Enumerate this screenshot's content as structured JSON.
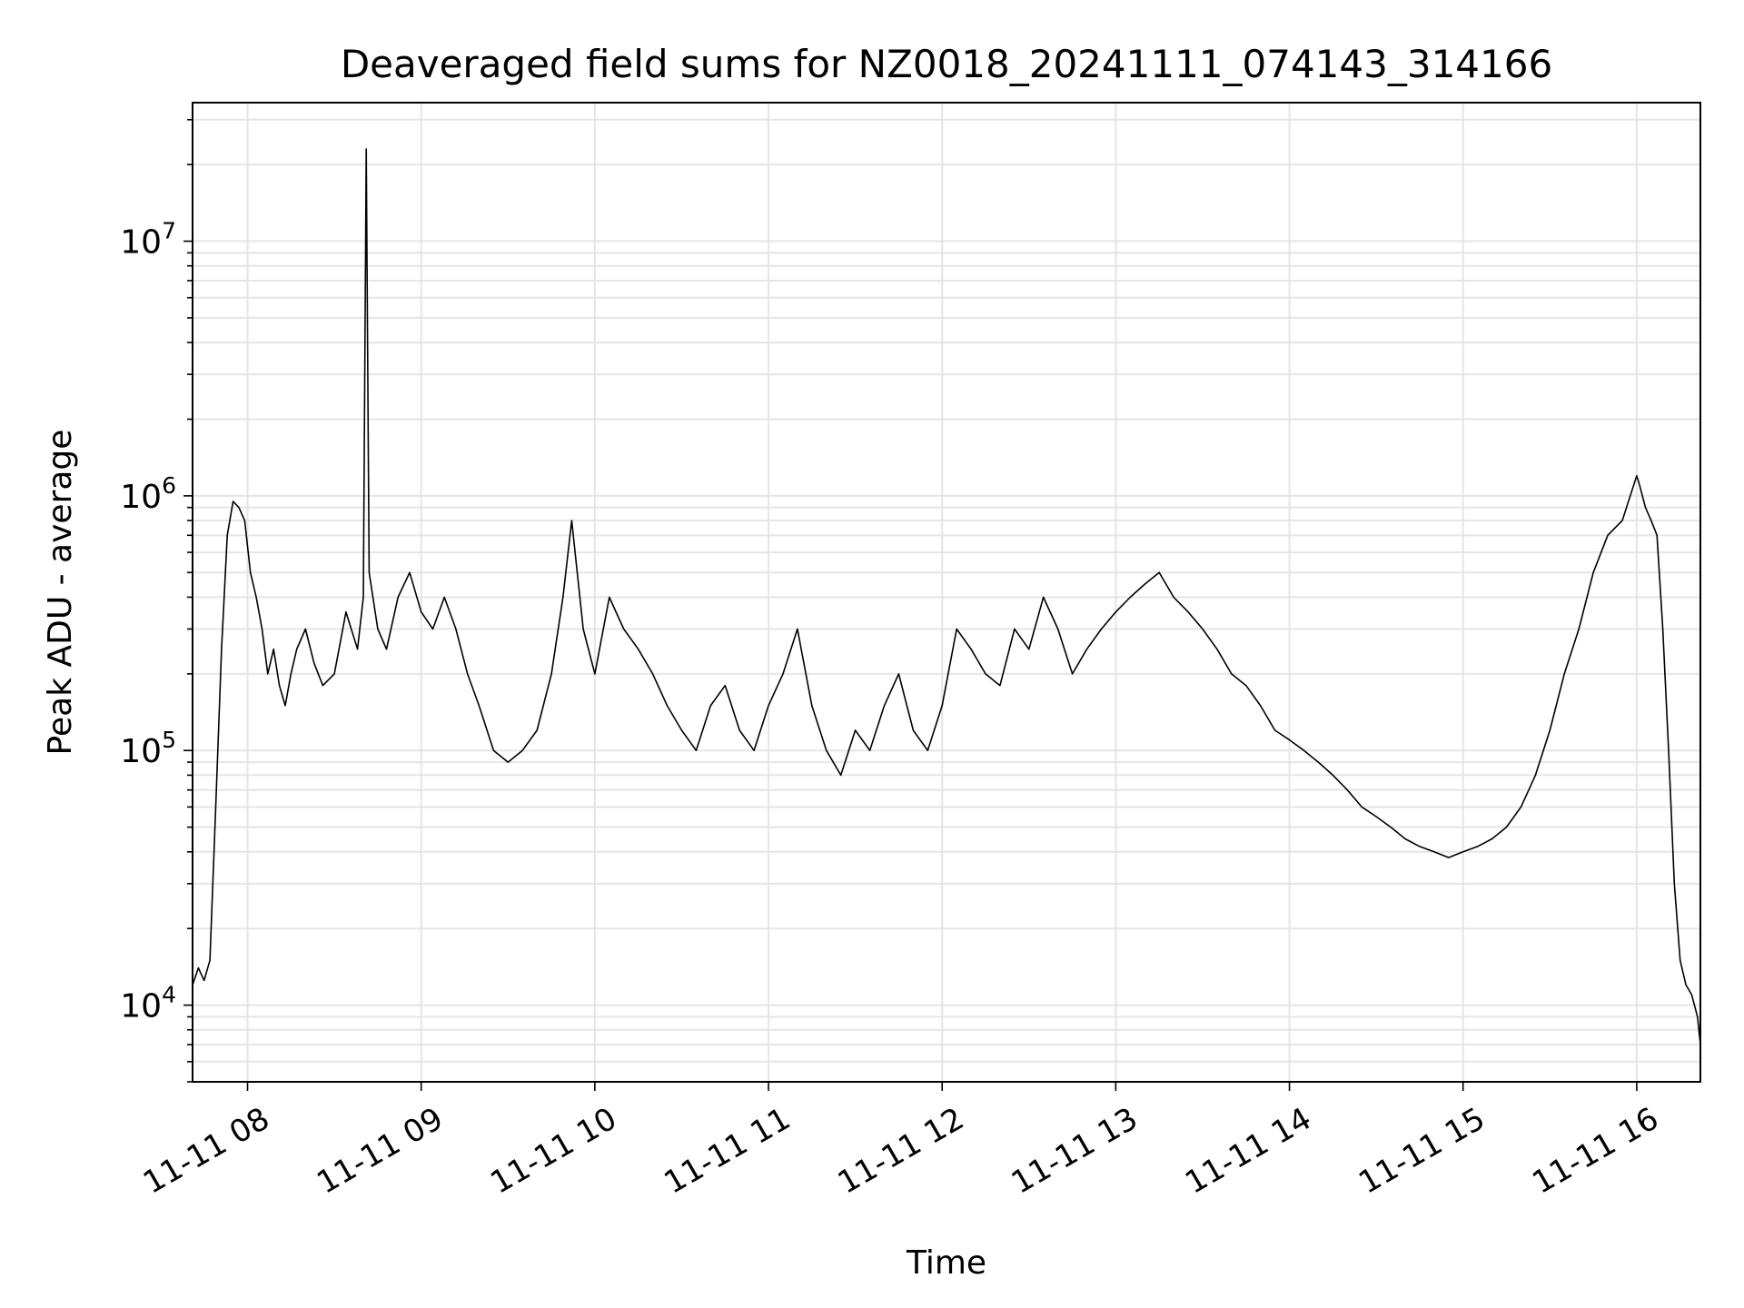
{
  "chart_data": {
    "type": "line",
    "title": "Deaveraged field sums for NZ0018_20241111_074143_314166",
    "xlabel": "Time",
    "ylabel": "Peak ADU - average",
    "yscale": "log",
    "ylim": [
      5000,
      35000000
    ],
    "xlim": [
      "2024-11-11 07:41",
      "2024-11-11 16:22"
    ],
    "grid": true,
    "line_color": "#000000",
    "grid_color": "#e5e5e5",
    "x_ticks": [
      {
        "value": "2024-11-11 08:00",
        "label": "11-11 08"
      },
      {
        "value": "2024-11-11 09:00",
        "label": "11-11 09"
      },
      {
        "value": "2024-11-11 10:00",
        "label": "11-11 10"
      },
      {
        "value": "2024-11-11 11:00",
        "label": "11-11 11"
      },
      {
        "value": "2024-11-11 12:00",
        "label": "11-11 12"
      },
      {
        "value": "2024-11-11 13:00",
        "label": "11-11 13"
      },
      {
        "value": "2024-11-11 14:00",
        "label": "11-11 14"
      },
      {
        "value": "2024-11-11 15:00",
        "label": "11-11 15"
      },
      {
        "value": "2024-11-11 16:00",
        "label": "11-11 16"
      }
    ],
    "y_ticks": [
      {
        "value": 10000,
        "base": "10",
        "exp": "4"
      },
      {
        "value": 100000,
        "base": "10",
        "exp": "5"
      },
      {
        "value": 1000000,
        "base": "10",
        "exp": "6"
      },
      {
        "value": 10000000,
        "base": "10",
        "exp": "7"
      }
    ],
    "series": [
      {
        "x": [
          "07:41",
          "07:43",
          "07:45",
          "07:47",
          "07:49",
          "07:51",
          "07:53",
          "07:55",
          "07:57",
          "07:59",
          "08:01",
          "08:03",
          "08:05",
          "08:07",
          "08:09",
          "08:11",
          "08:13",
          "08:15",
          "08:17",
          "08:20",
          "08:23",
          "08:26",
          "08:30",
          "08:34",
          "08:38",
          "08:40",
          "08:41",
          "08:42",
          "08:45",
          "08:48",
          "08:52",
          "08:56",
          "09:00",
          "09:04",
          "09:08",
          "09:12",
          "09:16",
          "09:20",
          "09:25",
          "09:30",
          "09:35",
          "09:40",
          "09:45",
          "09:49",
          "09:52",
          "09:56",
          "10:00",
          "10:05",
          "10:10",
          "10:15",
          "10:20",
          "10:25",
          "10:30",
          "10:35",
          "10:40",
          "10:45",
          "10:50",
          "10:55",
          "11:00",
          "11:05",
          "11:10",
          "11:15",
          "11:20",
          "11:25",
          "11:30",
          "11:35",
          "11:40",
          "11:45",
          "11:50",
          "11:55",
          "12:00",
          "12:05",
          "12:10",
          "12:15",
          "12:20",
          "12:25",
          "12:30",
          "12:35",
          "12:40",
          "12:45",
          "12:50",
          "12:55",
          "13:00",
          "13:05",
          "13:10",
          "13:15",
          "13:20",
          "13:25",
          "13:30",
          "13:35",
          "13:40",
          "13:45",
          "13:50",
          "13:55",
          "14:00",
          "14:05",
          "14:10",
          "14:15",
          "14:20",
          "14:25",
          "14:30",
          "14:35",
          "14:40",
          "14:45",
          "14:50",
          "14:55",
          "15:00",
          "15:05",
          "15:10",
          "15:15",
          "15:20",
          "15:25",
          "15:30",
          "15:35",
          "15:40",
          "15:45",
          "15:50",
          "15:55",
          "16:00",
          "16:01",
          "16:03",
          "16:05",
          "16:07",
          "16:09",
          "16:11",
          "16:13",
          "16:15",
          "16:17",
          "16:19",
          "16:21",
          "16:22"
        ],
        "y": [
          12000,
          14000,
          12500,
          15000,
          60000,
          250000,
          700000,
          950000,
          900000,
          800000,
          500000,
          400000,
          300000,
          200000,
          250000,
          180000,
          150000,
          200000,
          250000,
          300000,
          220000,
          180000,
          200000,
          350000,
          250000,
          400000,
          23000000,
          500000,
          300000,
          250000,
          400000,
          500000,
          350000,
          300000,
          400000,
          300000,
          200000,
          150000,
          100000,
          90000,
          100000,
          120000,
          200000,
          400000,
          800000,
          300000,
          200000,
          400000,
          300000,
          250000,
          200000,
          150000,
          120000,
          100000,
          150000,
          180000,
          120000,
          100000,
          150000,
          200000,
          300000,
          150000,
          100000,
          80000,
          120000,
          100000,
          150000,
          200000,
          120000,
          100000,
          150000,
          300000,
          250000,
          200000,
          180000,
          300000,
          250000,
          400000,
          300000,
          200000,
          250000,
          300000,
          350000,
          400000,
          450000,
          500000,
          400000,
          350000,
          300000,
          250000,
          200000,
          180000,
          150000,
          120000,
          110000,
          100000,
          90000,
          80000,
          70000,
          60000,
          55000,
          50000,
          45000,
          42000,
          40000,
          38000,
          40000,
          42000,
          45000,
          50000,
          60000,
          80000,
          120000,
          200000,
          300000,
          500000,
          700000,
          800000,
          1200000,
          1100000,
          900000,
          800000,
          700000,
          300000,
          100000,
          30000,
          15000,
          12000,
          11000,
          9000,
          7000
        ]
      }
    ]
  }
}
